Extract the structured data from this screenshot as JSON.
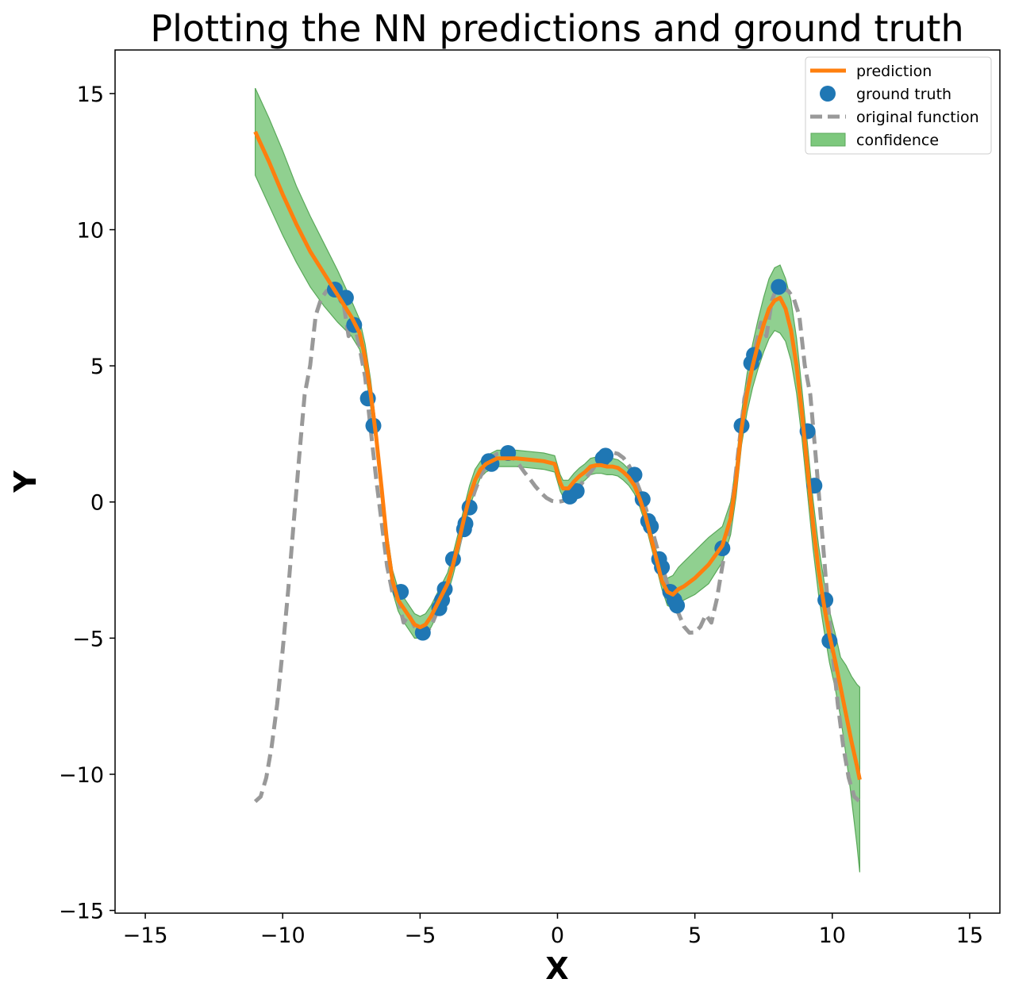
{
  "chart_data": {
    "type": "line",
    "title": "Plotting the NN predictions and ground truth",
    "xlabel": "X",
    "ylabel": "Y",
    "xlim": [
      -16.1,
      16.1
    ],
    "ylim": [
      -15.1,
      16.6
    ],
    "xticks": [
      -15,
      -10,
      -5,
      0,
      5,
      10,
      15
    ],
    "xtick_labels": [
      "−15",
      "−10",
      "−5",
      "0",
      "5",
      "10",
      "15"
    ],
    "yticks": [
      15,
      10,
      5,
      0,
      -5,
      -10,
      -15
    ],
    "ytick_labels": [
      "15",
      "10",
      "5",
      "0",
      "−5",
      "−10",
      "−15"
    ],
    "grid": false,
    "legend_position": "top-right",
    "colors": {
      "prediction": "#ff7f0e",
      "ground_truth": "#1f77b4",
      "original": "#999999",
      "confidence_fill": "#7dc87d",
      "confidence_edge": "#5aa85a"
    },
    "legend": [
      "prediction",
      "ground truth",
      "original function",
      "confidence"
    ],
    "prediction": {
      "x": [
        -11.0,
        -10.5,
        -10.0,
        -9.5,
        -9.0,
        -8.5,
        -8.0,
        -7.5,
        -7.2,
        -7.0,
        -6.8,
        -6.6,
        -6.4,
        -6.2,
        -6.0,
        -5.8,
        -5.6,
        -5.4,
        -5.2,
        -5.0,
        -4.8,
        -4.6,
        -4.4,
        -4.2,
        -4.0,
        -3.8,
        -3.6,
        -3.4,
        -3.2,
        -3.0,
        -2.8,
        -2.6,
        -2.4,
        -2.2,
        -2.0,
        -1.5,
        -1.0,
        -0.5,
        -0.1,
        0.1,
        0.2,
        0.4,
        0.6,
        0.8,
        1.0,
        1.2,
        1.4,
        1.6,
        1.8,
        2.0,
        2.2,
        2.4,
        2.6,
        2.8,
        3.0,
        3.2,
        3.4,
        3.6,
        3.8,
        4.0,
        4.2,
        4.4,
        4.6,
        5.0,
        5.5,
        6.0,
        6.3,
        6.5,
        6.7,
        6.9,
        7.1,
        7.3,
        7.5,
        7.7,
        7.9,
        8.1,
        8.3,
        8.5,
        8.7,
        8.9,
        9.1,
        9.3,
        9.5,
        9.7,
        9.9,
        10.1,
        10.3,
        10.5,
        10.7,
        10.9,
        11.0
      ],
      "y": [
        13.6,
        12.5,
        11.3,
        10.2,
        9.2,
        8.4,
        7.6,
        6.8,
        6.2,
        5.3,
        4.0,
        2.4,
        0.5,
        -1.5,
        -2.9,
        -3.6,
        -3.9,
        -4.2,
        -4.5,
        -4.6,
        -4.5,
        -4.2,
        -3.8,
        -3.4,
        -3.0,
        -2.3,
        -1.5,
        -0.6,
        0.2,
        0.8,
        1.2,
        1.4,
        1.5,
        1.6,
        1.6,
        1.6,
        1.55,
        1.5,
        1.4,
        0.7,
        0.5,
        0.5,
        0.75,
        0.95,
        1.1,
        1.3,
        1.35,
        1.35,
        1.3,
        1.3,
        1.25,
        1.1,
        0.9,
        0.6,
        0.1,
        -0.5,
        -1.3,
        -2.1,
        -2.9,
        -3.3,
        -3.4,
        -3.2,
        -3.1,
        -2.8,
        -2.3,
        -1.6,
        -0.6,
        0.8,
        2.7,
        4.0,
        5.0,
        5.8,
        6.5,
        7.1,
        7.4,
        7.5,
        7.1,
        6.3,
        5.0,
        3.2,
        1.2,
        -0.8,
        -2.5,
        -3.8,
        -4.9,
        -5.8,
        -6.8,
        -7.8,
        -8.8,
        -9.7,
        -10.2
      ]
    },
    "confidence": {
      "x": [
        -11.0,
        -10.5,
        -10.0,
        -9.5,
        -9.0,
        -8.5,
        -8.0,
        -7.5,
        -7.2,
        -7.0,
        -6.8,
        -6.6,
        -6.4,
        -6.2,
        -6.0,
        -5.8,
        -5.6,
        -5.4,
        -5.2,
        -5.0,
        -4.8,
        -4.6,
        -4.4,
        -4.2,
        -4.0,
        -3.8,
        -3.6,
        -3.4,
        -3.2,
        -3.0,
        -2.8,
        -2.6,
        -2.4,
        -2.2,
        -2.0,
        -1.5,
        -1.0,
        -0.5,
        -0.1,
        0.1,
        0.2,
        0.4,
        0.6,
        0.8,
        1.0,
        1.2,
        1.4,
        1.6,
        1.8,
        2.0,
        2.2,
        2.4,
        2.6,
        2.8,
        3.0,
        3.2,
        3.4,
        3.6,
        3.8,
        4.0,
        4.2,
        4.4,
        4.6,
        5.0,
        5.5,
        6.0,
        6.3,
        6.5,
        6.7,
        6.9,
        7.1,
        7.3,
        7.5,
        7.7,
        7.9,
        8.1,
        8.3,
        8.5,
        8.7,
        8.9,
        9.1,
        9.3,
        9.5,
        9.7,
        9.9,
        10.1,
        10.3,
        10.5,
        10.7,
        10.9,
        11.0
      ],
      "upper": [
        15.2,
        14.1,
        12.9,
        11.6,
        10.5,
        9.5,
        8.5,
        7.4,
        6.7,
        5.8,
        4.5,
        2.8,
        0.9,
        -1.1,
        -2.5,
        -3.2,
        -3.5,
        -3.8,
        -4.1,
        -4.2,
        -4.1,
        -3.8,
        -3.4,
        -3.0,
        -2.6,
        -1.9,
        -1.1,
        -0.2,
        0.6,
        1.2,
        1.5,
        1.7,
        1.8,
        1.9,
        1.9,
        1.9,
        1.85,
        1.8,
        1.7,
        1.0,
        0.8,
        0.8,
        1.05,
        1.25,
        1.4,
        1.6,
        1.65,
        1.65,
        1.6,
        1.6,
        1.55,
        1.4,
        1.2,
        0.9,
        0.4,
        -0.2,
        -1.0,
        -1.8,
        -2.6,
        -2.8,
        -2.7,
        -2.4,
        -2.2,
        -1.8,
        -1.3,
        -0.9,
        0.0,
        1.4,
        3.3,
        4.7,
        5.8,
        6.7,
        7.5,
        8.2,
        8.6,
        8.7,
        8.2,
        7.4,
        6.0,
        4.1,
        2.1,
        0.1,
        -1.6,
        -2.9,
        -4.0,
        -4.8,
        -5.7,
        -6.0,
        -6.4,
        -6.7,
        -6.8
      ],
      "lower": [
        12.0,
        10.9,
        9.8,
        8.8,
        7.9,
        7.2,
        6.6,
        6.1,
        5.6,
        4.8,
        3.5,
        2.0,
        0.1,
        -1.9,
        -3.3,
        -4.0,
        -4.4,
        -4.7,
        -5.0,
        -5.0,
        -4.9,
        -4.6,
        -4.2,
        -3.8,
        -3.4,
        -2.7,
        -1.9,
        -1.0,
        -0.2,
        0.4,
        0.9,
        1.1,
        1.2,
        1.3,
        1.3,
        1.3,
        1.25,
        1.2,
        1.1,
        0.4,
        0.2,
        0.2,
        0.45,
        0.65,
        0.8,
        1.0,
        1.05,
        1.05,
        1.0,
        1.0,
        0.95,
        0.8,
        0.6,
        0.3,
        -0.2,
        -0.8,
        -1.6,
        -2.4,
        -3.2,
        -3.8,
        -3.9,
        -3.7,
        -3.6,
        -3.4,
        -3.0,
        -2.2,
        -1.2,
        0.2,
        2.1,
        3.3,
        4.2,
        4.9,
        5.5,
        6.0,
        6.3,
        6.2,
        5.9,
        5.2,
        4.0,
        2.3,
        0.3,
        -1.7,
        -3.4,
        -4.7,
        -5.9,
        -6.8,
        -7.9,
        -9.3,
        -10.9,
        -12.6,
        -13.6
      ]
    },
    "original_function": {
      "x": [
        -11.0,
        -10.8,
        -10.6,
        -10.4,
        -10.2,
        -10.0,
        -9.8,
        -9.6,
        -9.4,
        -9.2,
        -9.0,
        -8.8,
        -8.6,
        -8.4,
        -8.2,
        -8.0,
        -7.8,
        -7.6,
        -7.4,
        -7.2,
        -7.0,
        -6.8,
        -6.6,
        -6.4,
        -6.2,
        -6.0,
        -5.8,
        -5.6,
        -5.4,
        -5.2,
        -5.0,
        -4.8,
        -4.6,
        -4.4,
        -4.2,
        -4.0,
        -3.8,
        -3.6,
        -3.4,
        -3.2,
        -3.0,
        -2.8,
        -2.6,
        -2.4,
        -2.2,
        -2.0,
        -1.8,
        -1.6,
        -1.4,
        -1.2,
        -1.0,
        -0.8,
        -0.6,
        -0.4,
        -0.2,
        0.0,
        0.2,
        0.4,
        0.6,
        0.8,
        1.0,
        1.2,
        1.4,
        1.6,
        1.8,
        2.0,
        2.2,
        2.4,
        2.6,
        2.8,
        3.0,
        3.2,
        3.4,
        3.6,
        3.8,
        4.0,
        4.2,
        4.4,
        4.6,
        4.8,
        5.0,
        5.2,
        5.4,
        5.6,
        5.8,
        6.0,
        6.2,
        6.4,
        6.6,
        6.8,
        7.0,
        7.2,
        7.4,
        7.6,
        7.8,
        8.0,
        8.2,
        8.4,
        8.6,
        8.8,
        9.0,
        9.2,
        9.4,
        9.6,
        9.8,
        10.0,
        10.2,
        10.4,
        10.6,
        10.8,
        11.0
      ],
      "y": [
        -11.0,
        -10.82,
        -10.13,
        -8.97,
        -7.42,
        -5.44,
        -3.23,
        -0.76,
        1.65,
        3.94,
        5.02,
        6.85,
        7.47,
        7.75,
        7.83,
        7.92,
        7.39,
        6.09,
        6.59,
        5.66,
        4.6,
        2.69,
        0.86,
        -0.75,
        -2.36,
        -3.35,
        -3.57,
        -4.43,
        -4.14,
        -4.58,
        -4.79,
        -4.8,
        -4.57,
        -4.08,
        -3.84,
        -3.03,
        -2.31,
        -1.6,
        -0.86,
        -0.18,
        0.42,
        0.94,
        1.34,
        1.62,
        1.77,
        1.82,
        1.76,
        1.6,
        1.37,
        1.09,
        0.84,
        0.57,
        0.34,
        0.15,
        0.04,
        0.0,
        0.04,
        0.15,
        0.34,
        0.57,
        0.84,
        1.09,
        1.37,
        1.6,
        1.76,
        1.82,
        1.77,
        1.62,
        1.34,
        0.94,
        0.42,
        -0.18,
        -0.86,
        -1.6,
        -2.31,
        -3.03,
        -3.84,
        -4.08,
        -4.57,
        -4.8,
        -4.79,
        -4.58,
        -4.14,
        -4.43,
        -3.57,
        -2.35,
        -1.2,
        0.27,
        2.02,
        3.8,
        4.6,
        5.66,
        6.59,
        6.09,
        7.39,
        7.92,
        7.83,
        7.75,
        7.47,
        6.85,
        5.02,
        3.94,
        1.65,
        -0.76,
        -3.23,
        -5.44,
        -7.42,
        -8.97,
        -10.13,
        -10.82,
        -11.0
      ]
    },
    "ground_truth": {
      "x": [
        -8.1,
        -7.7,
        -7.4,
        -6.9,
        -6.7,
        -5.7,
        -4.9,
        -4.3,
        -4.2,
        -4.1,
        -3.8,
        -3.4,
        -3.35,
        -3.2,
        -2.5,
        -2.4,
        -1.8,
        0.45,
        0.7,
        1.65,
        1.75,
        2.8,
        3.1,
        3.3,
        3.4,
        3.7,
        3.8,
        4.1,
        4.25,
        4.35,
        6.0,
        6.7,
        7.05,
        7.15,
        8.05,
        9.1,
        9.35,
        9.75,
        9.9
      ],
      "y": [
        7.8,
        7.5,
        6.5,
        3.8,
        2.8,
        -3.3,
        -4.8,
        -3.9,
        -3.6,
        -3.2,
        -2.1,
        -1.0,
        -0.8,
        -0.2,
        1.5,
        1.4,
        1.8,
        0.2,
        0.4,
        1.6,
        1.7,
        1.0,
        0.1,
        -0.7,
        -0.9,
        -2.1,
        -2.4,
        -3.3,
        -3.6,
        -3.8,
        -1.7,
        2.8,
        5.1,
        5.4,
        7.9,
        2.6,
        0.6,
        -3.6,
        -5.1
      ]
    }
  }
}
